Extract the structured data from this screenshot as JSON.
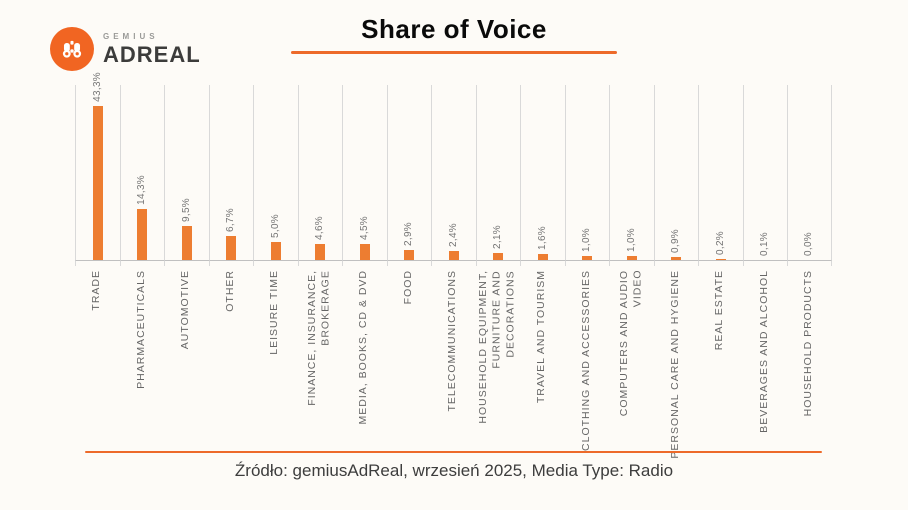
{
  "logo": {
    "brand_top": "GEMIUS",
    "brand_main": "ADREAL"
  },
  "title": "Share of Voice",
  "footer": {
    "source_text": "Źródło: gemiusAdReal, wrzesień 2025, Media Type: Radio"
  },
  "colors": {
    "background": "#FDFBF7",
    "bar": "#ED7D31",
    "accent_line": "#ED6A2A",
    "logo_circle": "#F16522",
    "gridline": "#D9D9D9",
    "axis_line": "#C0C0C0",
    "category_label": "#666666",
    "value_label": "#757575"
  },
  "chart_data": {
    "type": "bar",
    "title": "Share of Voice",
    "unit": "%",
    "decimal_separator": ",",
    "orientation": "vertical",
    "ylim": [
      0,
      45
    ],
    "grid": "vertical category separators only",
    "legend": "none",
    "value_labels_rotated_90": true,
    "category_labels_rotated_90": true,
    "categories": [
      "TRADE",
      "PHARMACEUTICALS",
      "AUTOMOTIVE",
      "OTHER",
      "LEISURE TIME",
      "FINANCE, INSURANCE,\nBROKERAGE",
      "MEDIA, BOOKS, CD & DVD",
      "FOOD",
      "TELECOMMUNICATIONS",
      "HOUSEHOLD EQUIPMENT,\nFURNITURE AND\nDECORATIONS",
      "TRAVEL AND TOURISM",
      "CLOTHING AND ACCESSORIES",
      "COMPUTERS AND AUDIO\nVIDEO",
      "PERSONAL CARE AND HYGIENE",
      "REAL ESTATE",
      "BEVERAGES AND ALCOHOL",
      "HOUSEHOLD PRODUCTS"
    ],
    "values": [
      43.3,
      14.3,
      9.5,
      6.7,
      5.0,
      4.6,
      4.5,
      2.9,
      2.4,
      2.1,
      1.6,
      1.0,
      1.0,
      0.9,
      0.2,
      0.1,
      0.0
    ],
    "value_labels": [
      "43,3%",
      "14,3%",
      "9,5%",
      "6,7%",
      "5,0%",
      "4,6%",
      "4,5%",
      "2,9%",
      "2,4%",
      "2,1%",
      "1,6%",
      "1,0%",
      "1,0%",
      "0,9%",
      "0,2%",
      "0,1%",
      "0,0%"
    ]
  }
}
